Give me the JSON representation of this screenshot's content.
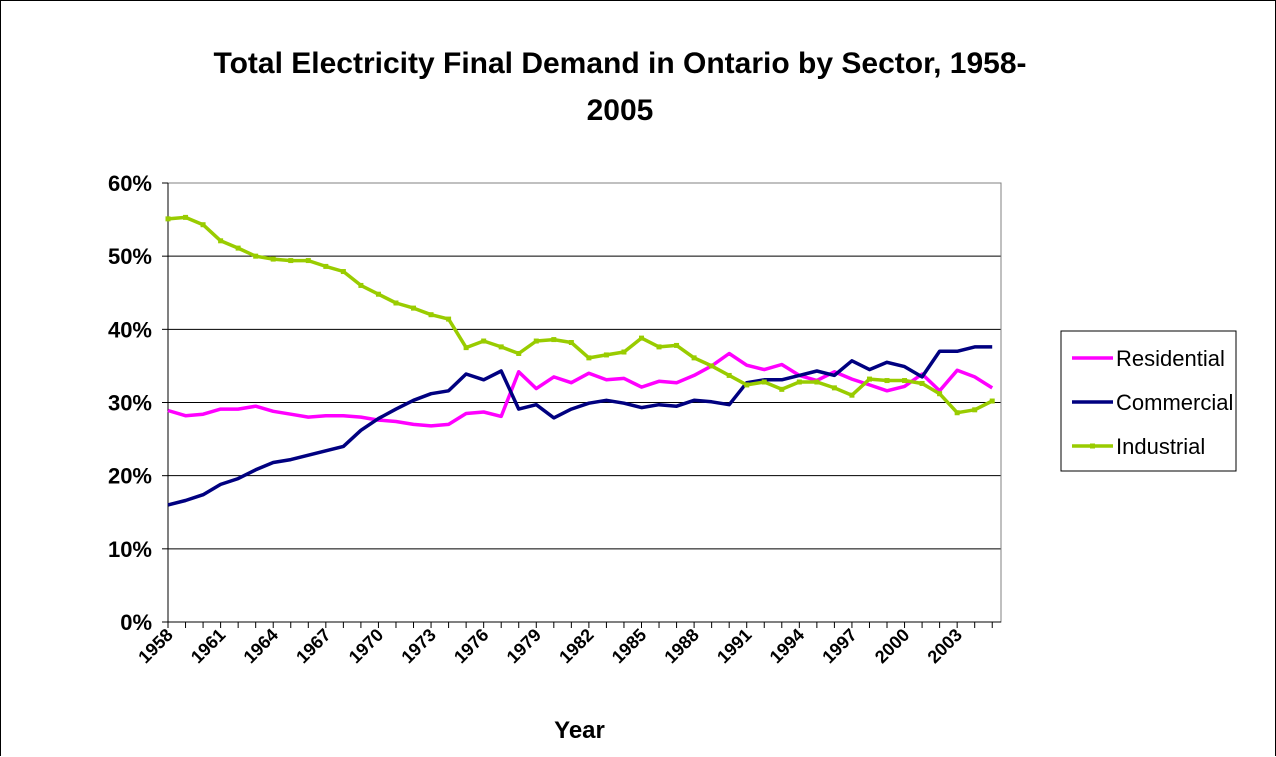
{
  "chart_data": {
    "type": "line",
    "title": "Total Electricity Final Demand in Ontario by Sector, 1958-",
    "title_line2": "2005",
    "xlabel": "Year",
    "ylabel": "",
    "ylim": [
      0,
      60
    ],
    "y_ticks": [
      "0%",
      "10%",
      "20%",
      "30%",
      "40%",
      "50%",
      "60%"
    ],
    "x_tick_labels": [
      "1958",
      "1961",
      "1964",
      "1967",
      "1970",
      "1973",
      "1976",
      "1979",
      "1982",
      "1985",
      "1988",
      "1991",
      "1994",
      "1997",
      "2000",
      "2003"
    ],
    "x": [
      1958,
      1959,
      1960,
      1961,
      1962,
      1963,
      1964,
      1965,
      1966,
      1967,
      1968,
      1969,
      1970,
      1971,
      1972,
      1973,
      1974,
      1975,
      1976,
      1977,
      1978,
      1979,
      1980,
      1981,
      1982,
      1983,
      1984,
      1985,
      1986,
      1987,
      1988,
      1989,
      1990,
      1991,
      1992,
      1993,
      1994,
      1995,
      1996,
      1997,
      1998,
      1999,
      2000,
      2001,
      2002,
      2003,
      2004,
      2005
    ],
    "grid": "horizontal",
    "legend_position": "right",
    "series": [
      {
        "name": "Residential",
        "color": "#ff00ff",
        "marker": "none",
        "values": [
          28.9,
          28.2,
          28.4,
          29.1,
          29.1,
          29.5,
          28.8,
          28.4,
          28.0,
          28.2,
          28.2,
          28.0,
          27.6,
          27.4,
          27.0,
          26.8,
          27.0,
          28.5,
          28.7,
          28.1,
          34.2,
          31.9,
          33.5,
          32.7,
          34.0,
          33.1,
          33.3,
          32.1,
          32.9,
          32.7,
          33.7,
          35.0,
          36.7,
          35.1,
          34.5,
          35.2,
          33.7,
          33.0,
          34.2,
          33.2,
          32.4,
          31.6,
          32.2,
          33.9,
          31.6,
          34.4,
          33.5,
          32.0
        ]
      },
      {
        "name": "Commercial",
        "color": "#000080",
        "marker": "none",
        "values": [
          16.0,
          16.6,
          17.4,
          18.8,
          19.6,
          20.8,
          21.8,
          22.2,
          22.8,
          23.4,
          24.0,
          26.2,
          27.8,
          29.1,
          30.3,
          31.2,
          31.6,
          33.9,
          33.1,
          34.3,
          29.1,
          29.7,
          27.9,
          29.1,
          29.9,
          30.3,
          29.9,
          29.3,
          29.7,
          29.5,
          30.3,
          30.1,
          29.7,
          32.7,
          33.1,
          33.1,
          33.7,
          34.3,
          33.7,
          35.7,
          34.5,
          35.5,
          34.9,
          33.5,
          37.0,
          37.0,
          37.6,
          37.6
        ]
      },
      {
        "name": "Industrial",
        "color": "#99cc00",
        "marker": "square",
        "values": [
          55.1,
          55.3,
          54.3,
          52.1,
          51.1,
          50.0,
          49.6,
          49.4,
          49.4,
          48.6,
          47.9,
          46.0,
          44.8,
          43.6,
          42.9,
          42.0,
          41.4,
          37.5,
          38.4,
          37.6,
          36.7,
          38.4,
          38.6,
          38.2,
          36.1,
          36.5,
          36.9,
          38.8,
          37.6,
          37.8,
          36.1,
          35.0,
          33.7,
          32.4,
          32.8,
          31.8,
          32.8,
          32.8,
          32.0,
          31.0,
          33.2,
          33.0,
          33.0,
          32.6,
          31.2,
          28.6,
          29.0,
          30.2
        ]
      }
    ]
  }
}
